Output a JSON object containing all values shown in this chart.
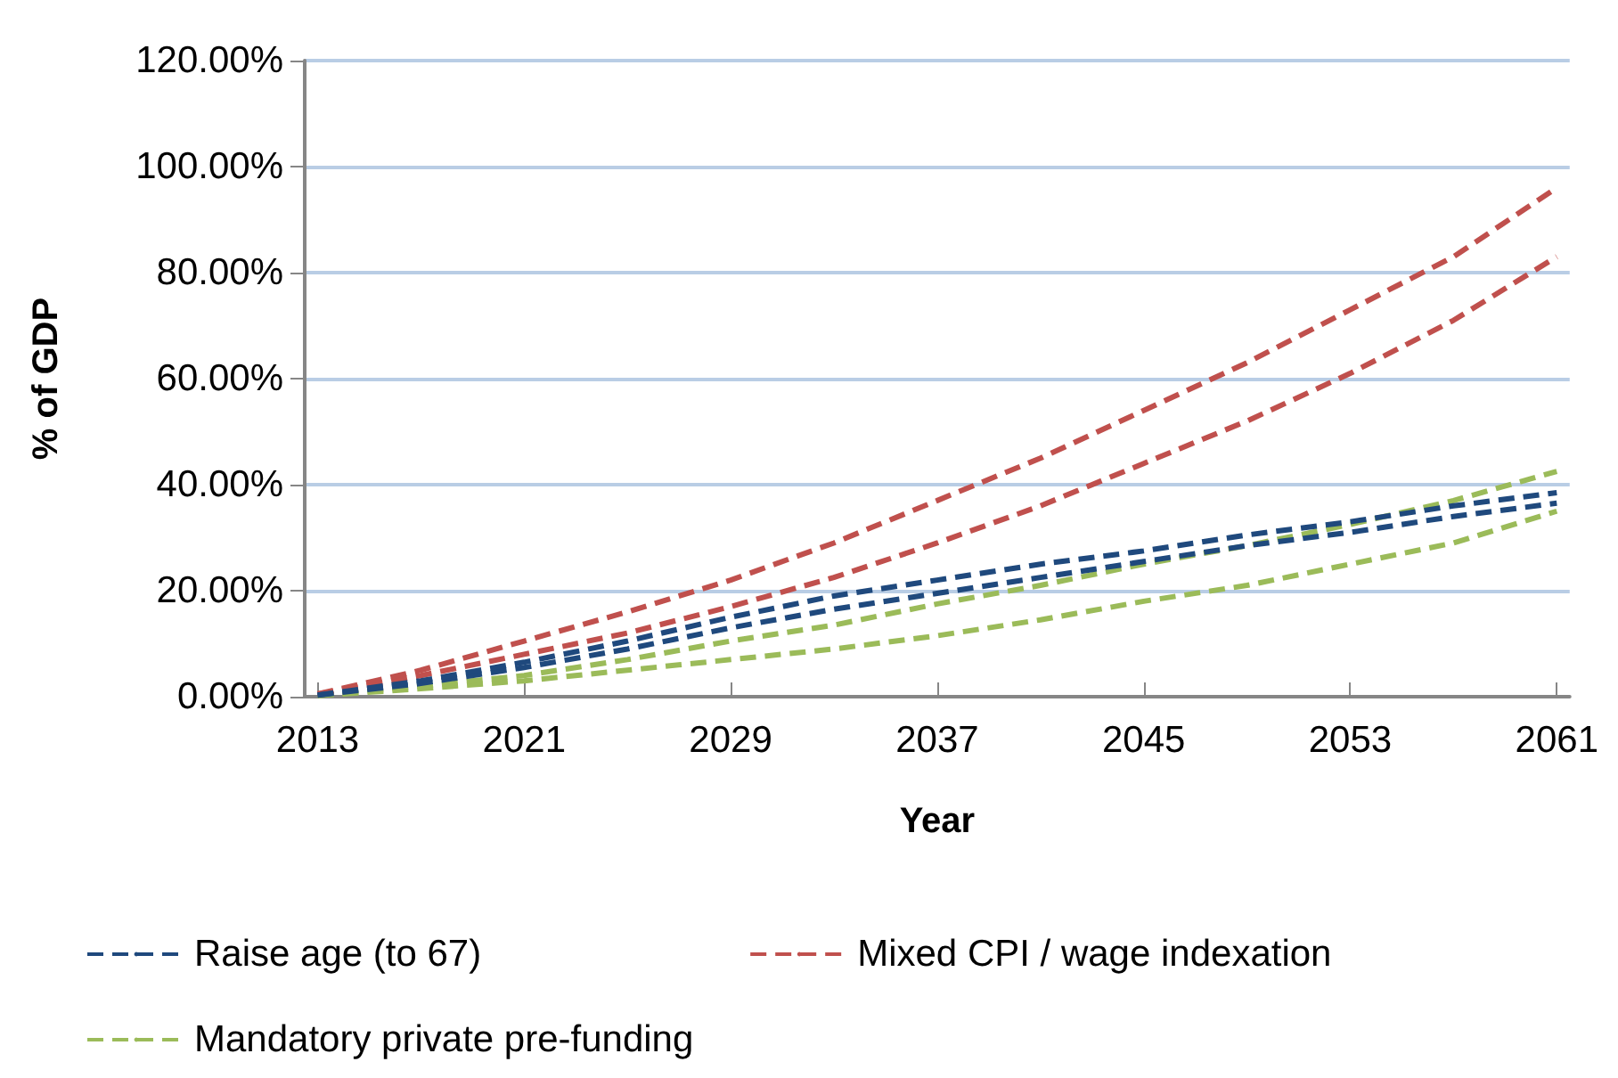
{
  "chart_data": {
    "type": "line",
    "xlabel": "Year",
    "ylabel": "% of GDP",
    "x": [
      2013,
      2017,
      2021,
      2025,
      2029,
      2033,
      2037,
      2041,
      2045,
      2049,
      2053,
      2057,
      2061
    ],
    "xlim": [
      2012.5,
      2061.5
    ],
    "xticks": [
      2013,
      2021,
      2029,
      2037,
      2045,
      2053,
      2061
    ],
    "ylim": [
      0,
      120
    ],
    "yticks": [
      {
        "value": 0,
        "label": "0.00%"
      },
      {
        "value": 20,
        "label": "20.00%"
      },
      {
        "value": 40,
        "label": "40.00%"
      },
      {
        "value": 60,
        "label": "60.00%"
      },
      {
        "value": 80,
        "label": "80.00%"
      },
      {
        "value": 100,
        "label": "100.00%"
      },
      {
        "value": 120,
        "label": "120.00%"
      }
    ],
    "series": [
      {
        "name": "Raise age (to 67)",
        "color": "#1f497d",
        "values": [
          0.3,
          3,
          6.5,
          10.5,
          15,
          19,
          22,
          25,
          27.5,
          30.5,
          33,
          36,
          38.5
        ]
      },
      {
        "color": "#1f497d",
        "values": [
          0.3,
          2.5,
          5.5,
          9,
          13,
          16.5,
          19.5,
          22.5,
          25.5,
          28.5,
          31,
          34,
          36.5
        ]
      },
      {
        "name": "Mixed CPI / wage indexation",
        "color": "#c0504d",
        "values": [
          0.5,
          5,
          10.5,
          16,
          22,
          29,
          37,
          45,
          54,
          63,
          73,
          83,
          96
        ]
      },
      {
        "color": "#c0504d",
        "values": [
          0.5,
          4,
          8,
          12,
          17,
          22.5,
          29,
          36,
          44,
          52,
          61,
          71,
          83
        ]
      },
      {
        "name": "Mandatory private pre-funding",
        "color": "#9bbb59",
        "values": [
          0.2,
          2,
          4,
          7,
          10.5,
          13.5,
          17.5,
          21,
          25,
          28.5,
          32.5,
          37,
          42.5
        ]
      },
      {
        "color": "#9bbb59",
        "values": [
          0.2,
          1.5,
          3,
          5,
          7,
          9,
          11.5,
          14.5,
          18,
          21,
          25,
          29,
          35
        ]
      }
    ],
    "line_style": "dashed",
    "marker": "none",
    "grid": "y",
    "legend": "bottom"
  }
}
